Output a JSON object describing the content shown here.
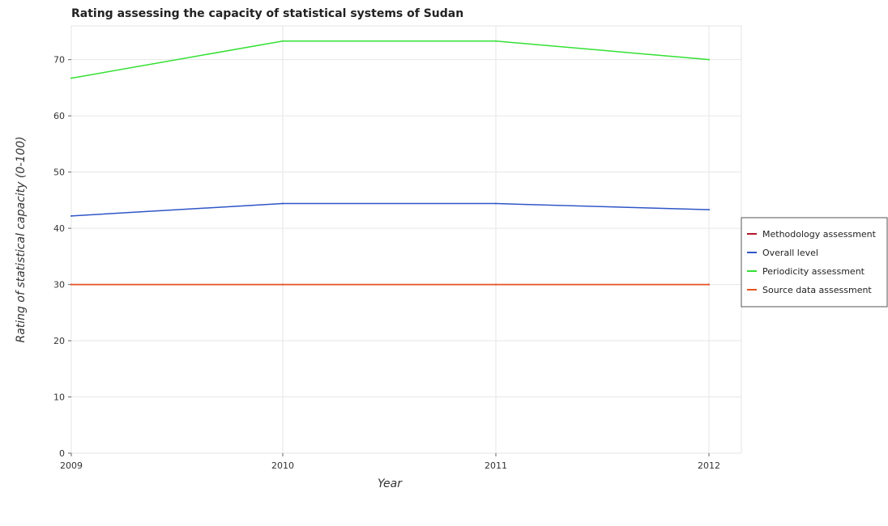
{
  "chart_data": {
    "type": "line",
    "title": "Rating assessing the capacity of statistical systems of Sudan",
    "xlabel": "Year",
    "ylabel": "Rating of statistical capacity (0-100)",
    "categories": [
      "2009",
      "2010",
      "2011",
      "2012"
    ],
    "ylim": [
      0,
      76
    ],
    "yticks": [
      0,
      10,
      20,
      30,
      40,
      50,
      60,
      70
    ],
    "grid": true,
    "legend_position": "right",
    "series": [
      {
        "name": "Methodology assessment",
        "color": "#b2182b",
        "values": [
          30,
          30,
          30,
          30
        ]
      },
      {
        "name": "Overall level",
        "color": "#2f55c8",
        "values": [
          42.2,
          44.4,
          44.4,
          43.3
        ]
      },
      {
        "name": "Periodicity assessment",
        "color": "#33e033",
        "values": [
          66.7,
          73.3,
          73.3,
          70
        ]
      },
      {
        "name": "Source data assessment",
        "color": "#e8531a",
        "values": [
          30,
          30,
          30,
          30
        ]
      }
    ]
  }
}
